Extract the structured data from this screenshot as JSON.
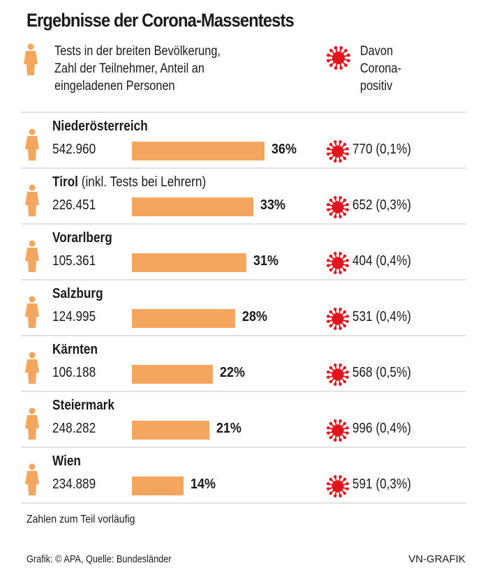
{
  "title": "Ergebnisse der Corona-Massentests",
  "legend": {
    "tests_icon": "person-icon",
    "tests_lines": [
      "Tests in der breiten Bevölkerung,",
      "Zahl der Teilnehmer, Anteil an",
      "eingeladenen Personen"
    ],
    "positive_icon": "virus-icon",
    "positive_lines": [
      "Davon",
      "Corona-",
      "positiv"
    ]
  },
  "colors": {
    "bar": "#f4a65e",
    "person": "#f4a65e",
    "virus": "#e3141b",
    "divider": "#e2e2e2"
  },
  "chart_data": {
    "type": "bar",
    "title": "Ergebnisse der Corona-Massentests",
    "xlabel": "",
    "ylabel": "Anteil an eingeladenen Personen (%)",
    "xlim": [
      0,
      100
    ],
    "categories": [
      "Niederösterreich",
      "Tirol",
      "Vorarlberg",
      "Salzburg",
      "Kärnten",
      "Steiermark",
      "Wien"
    ],
    "category_notes": [
      "",
      "(inkl. Tests bei Lehrern)",
      "",
      "",
      "",
      "",
      ""
    ],
    "participants": [
      "542.960",
      "226.451",
      "105.361",
      "124.995",
      "106.188",
      "248.282",
      "234.889"
    ],
    "values": [
      36,
      33,
      31,
      28,
      22,
      21,
      14
    ],
    "value_labels": [
      "36%",
      "33%",
      "31%",
      "28%",
      "22%",
      "21%",
      "14%"
    ],
    "positive_labels": [
      "770 (0,1%)",
      "652 (0,3%)",
      "404 (0,4%)",
      "531 (0,4%)",
      "568 (0,5%)",
      "996 (0,4%)",
      "591 (0,3%)"
    ],
    "positive_counts": [
      770,
      652,
      404,
      531,
      568,
      996,
      591
    ],
    "positive_pct": [
      0.1,
      0.3,
      0.4,
      0.4,
      0.5,
      0.4,
      0.3
    ],
    "grid": false,
    "legend": "top"
  },
  "footer": {
    "note": "Zahlen zum Teil vorläufig",
    "source": "Grafik: © APA, Quelle: Bundesländer",
    "brand": "VN-GRAFIK"
  }
}
